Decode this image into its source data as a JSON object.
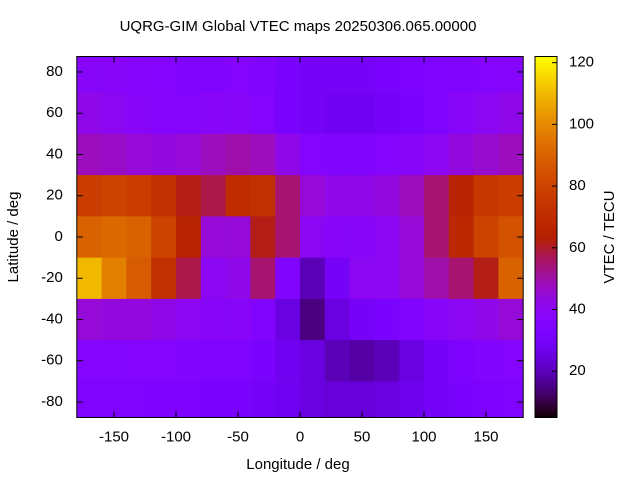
{
  "chart_data": {
    "type": "heatmap",
    "title": "UQRG-GIM Global VTEC maps 20250306.065.00000",
    "x_label": "Longitude / deg",
    "y_label": "Latitude / deg",
    "colorbar_label": "VTEC / TECU",
    "x": [
      -170,
      -150,
      -130,
      -110,
      -90,
      -70,
      -50,
      -30,
      -10,
      10,
      30,
      50,
      70,
      90,
      110,
      130,
      150,
      170
    ],
    "y": [
      80,
      60,
      40,
      20,
      0,
      -20,
      -40,
      -60,
      -80
    ],
    "values": [
      [
        38,
        38,
        37,
        36,
        35,
        35,
        36,
        35,
        32,
        30,
        30,
        30,
        32,
        33,
        34,
        35,
        36,
        37
      ],
      [
        42,
        40,
        38,
        37,
        37,
        38,
        38,
        36,
        32,
        30,
        28,
        28,
        30,
        32,
        34,
        38,
        40,
        42
      ],
      [
        48,
        47,
        45,
        44,
        45,
        48,
        50,
        48,
        42,
        36,
        35,
        35,
        36,
        38,
        40,
        44,
        46,
        48
      ],
      [
        78,
        80,
        78,
        72,
        62,
        58,
        70,
        72,
        55,
        45,
        42,
        42,
        44,
        48,
        55,
        65,
        75,
        78
      ],
      [
        90,
        92,
        90,
        80,
        65,
        45,
        45,
        62,
        55,
        40,
        38,
        38,
        40,
        45,
        55,
        68,
        80,
        85
      ],
      [
        110,
        98,
        88,
        72,
        58,
        40,
        42,
        55,
        35,
        20,
        30,
        40,
        40,
        45,
        50,
        55,
        62,
        90
      ],
      [
        45,
        44,
        44,
        42,
        40,
        38,
        38,
        35,
        25,
        15,
        25,
        30,
        32,
        35,
        38,
        40,
        42,
        45
      ],
      [
        36,
        36,
        36,
        36,
        35,
        34,
        34,
        32,
        28,
        25,
        20,
        18,
        20,
        25,
        30,
        33,
        35,
        36
      ],
      [
        34,
        34,
        34,
        33,
        33,
        32,
        32,
        30,
        28,
        25,
        24,
        24,
        25,
        27,
        30,
        32,
        33,
        34
      ]
    ],
    "xlim": [
      -180,
      180
    ],
    "ylim": [
      -87.5,
      87.5
    ],
    "cblim": [
      5,
      122
    ],
    "xticks": [
      -150,
      -100,
      -50,
      0,
      50,
      100,
      150
    ],
    "yticks": [
      -80,
      -60,
      -40,
      -20,
      0,
      20,
      40,
      60,
      80
    ],
    "cbticks": [
      20,
      40,
      60,
      80,
      100,
      120
    ]
  }
}
